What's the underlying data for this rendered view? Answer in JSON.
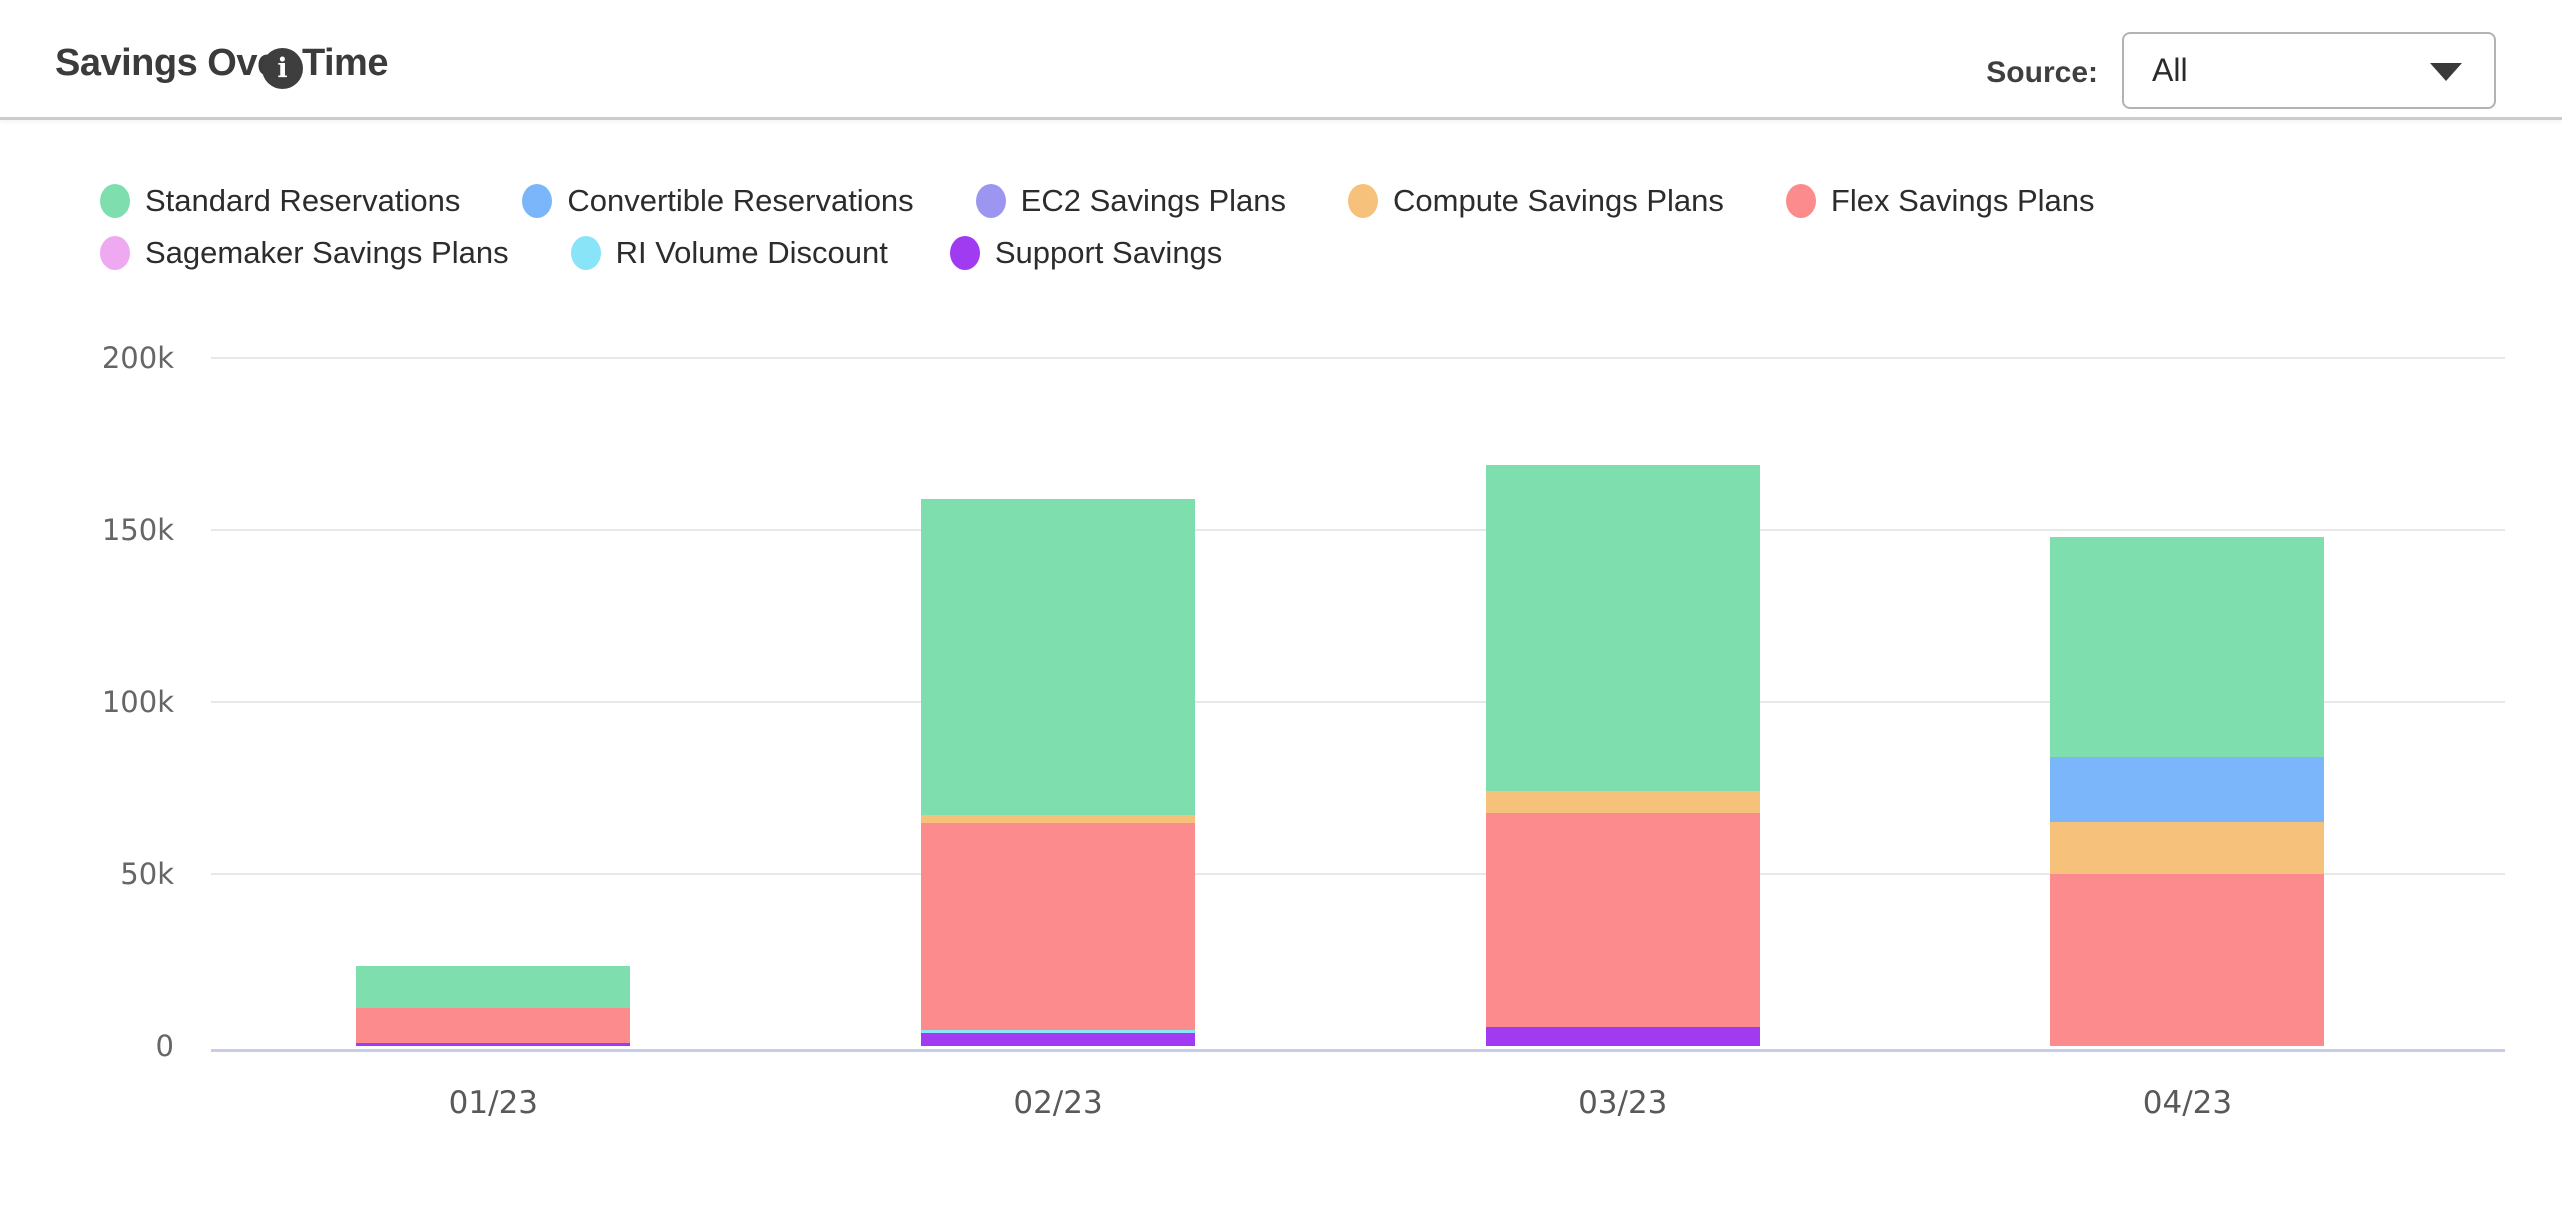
{
  "header": {
    "title": "Savings Over Time",
    "source_label": "Source:",
    "source_value": "All"
  },
  "icons": {
    "info_icon_glyph": "i",
    "caret_down_icon": "css-triangle-down"
  },
  "legend": {
    "rows": [
      [
        "Standard Reservations",
        "Convertible Reservations",
        "EC2 Savings Plans",
        "Compute Savings Plans",
        "Flex Savings Plans"
      ],
      [
        "Sagemaker Savings Plans",
        "RI Volume Discount",
        "Support Savings"
      ]
    ]
  },
  "chart_data": {
    "type": "bar",
    "stacked": true,
    "title": "Savings Over Time",
    "categories": [
      "01/23",
      "02/23",
      "03/23",
      "04/23"
    ],
    "series": [
      {
        "name": "Standard Reservations",
        "color": "#7fdead",
        "values": [
          12300,
          91900,
          94600,
          64000
        ]
      },
      {
        "name": "Convertible Reservations",
        "color": "#7ab6f9",
        "values": [
          0,
          0,
          0,
          19000
        ]
      },
      {
        "name": "EC2 Savings Plans",
        "color": "#9d96f0",
        "values": [
          0,
          0,
          0,
          0
        ]
      },
      {
        "name": "Compute Savings Plans",
        "color": "#f6c17b",
        "values": [
          0,
          2300,
          6400,
          15000
        ]
      },
      {
        "name": "Flex Savings Plans",
        "color": "#fb8b8d",
        "values": [
          10000,
          60300,
          62400,
          50000
        ]
      },
      {
        "name": "Sagemaker Savings Plans",
        "color": "#efa9f0",
        "values": [
          0,
          0,
          0,
          0
        ]
      },
      {
        "name": "RI Volume Discount",
        "color": "#8ae4f8",
        "values": [
          0,
          1000,
          0,
          0
        ]
      },
      {
        "name": "Support Savings",
        "color": "#a03bf2",
        "values": [
          1000,
          3700,
          5400,
          0
        ]
      }
    ],
    "stack_order_bottom_to_top": [
      "Support Savings",
      "RI Volume Discount",
      "Sagemaker Savings Plans",
      "Flex Savings Plans",
      "Compute Savings Plans",
      "EC2 Savings Plans",
      "Convertible Reservations",
      "Standard Reservations"
    ],
    "totals_by_category": [
      23300,
      159200,
      168800,
      148000
    ],
    "ylim": [
      0,
      200000
    ],
    "yticks": [
      {
        "value": 0,
        "label": "0"
      },
      {
        "value": 50000,
        "label": "50k"
      },
      {
        "value": 100000,
        "label": "100k"
      },
      {
        "value": 150000,
        "label": "150k"
      },
      {
        "value": 200000,
        "label": "200k"
      }
    ],
    "grid": true,
    "legend_position": "top",
    "colors": {
      "gridline": "#e8e8e8",
      "axis_line": "#c7cde7",
      "ytick_text": "#666666",
      "xtick_text": "#595959"
    }
  }
}
